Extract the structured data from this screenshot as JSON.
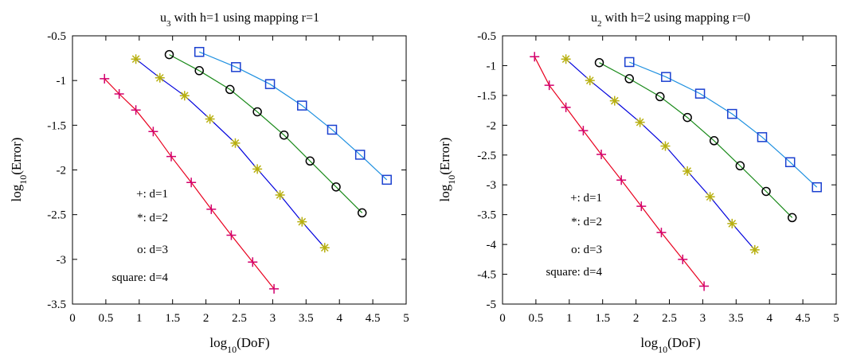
{
  "chart_data": [
    {
      "type": "line",
      "title_main": "u",
      "title_sub": "3",
      "title_rest": " with h=1 using mapping r=1",
      "xlabel_main": "log",
      "xlabel_sub": "10",
      "xlabel_rest": "(DoF)",
      "ylabel_main": "log",
      "ylabel_sub": "10",
      "ylabel_rest": "(Error)",
      "xlim": [
        0,
        5
      ],
      "ylim": [
        -3.5,
        -0.5
      ],
      "xticks": [
        0,
        0.5,
        1,
        1.5,
        2,
        2.5,
        3,
        3.5,
        4,
        4.5,
        5
      ],
      "xtick_labels": [
        "0",
        "0.5",
        "1",
        "1.5",
        "2",
        "2.5",
        "3",
        "3.5",
        "4",
        "4.5",
        "5"
      ],
      "yticks": [
        -3.5,
        -3,
        -2.5,
        -2,
        -1.5,
        -1,
        -0.5
      ],
      "ytick_labels": [
        "-3.5",
        "-3",
        "-2.5",
        "-2",
        "-1.5",
        "-1",
        "-0.5"
      ],
      "legend": [
        "+: d=1",
        "*: d=2",
        "o: d=3",
        "square: d=4"
      ],
      "series": [
        {
          "marker": "plus",
          "color": "#e8001f",
          "marker_color": "#d2006e",
          "x": [
            0.48,
            0.7,
            0.95,
            1.21,
            1.48,
            1.78,
            2.08,
            2.38,
            2.7,
            3.02
          ],
          "y": [
            -0.98,
            -1.15,
            -1.33,
            -1.57,
            -1.85,
            -2.14,
            -2.44,
            -2.73,
            -3.03,
            -3.33
          ]
        },
        {
          "marker": "star",
          "color": "#0000dd",
          "marker_color": "#b8b010",
          "x": [
            0.95,
            1.31,
            1.68,
            2.06,
            2.44,
            2.77,
            3.11,
            3.44,
            3.78
          ],
          "y": [
            -0.76,
            -0.97,
            -1.17,
            -1.43,
            -1.7,
            -1.99,
            -2.28,
            -2.58,
            -2.87
          ]
        },
        {
          "marker": "circle",
          "color": "#1a8a1a",
          "marker_color": "#000000",
          "x": [
            1.45,
            1.9,
            2.36,
            2.77,
            3.17,
            3.56,
            3.95,
            4.34
          ],
          "y": [
            -0.71,
            -0.89,
            -1.1,
            -1.35,
            -1.61,
            -1.9,
            -2.19,
            -2.48
          ]
        },
        {
          "marker": "square",
          "color": "#1e90e0",
          "marker_color": "#1a40d0",
          "x": [
            1.9,
            2.45,
            2.96,
            3.44,
            3.89,
            4.31,
            4.71
          ],
          "y": [
            -0.68,
            -0.85,
            -1.04,
            -1.28,
            -1.55,
            -1.83,
            -2.11
          ]
        }
      ]
    },
    {
      "type": "line",
      "title_main": "u",
      "title_sub": "2",
      "title_rest": " with h=2 using mapping r=0",
      "xlabel_main": "log",
      "xlabel_sub": "10",
      "xlabel_rest": "(DoF)",
      "ylabel_main": "log",
      "ylabel_sub": "10",
      "ylabel_rest": "(Error)",
      "xlim": [
        0,
        5
      ],
      "ylim": [
        -5,
        -0.5
      ],
      "xticks": [
        0,
        0.5,
        1,
        1.5,
        2,
        2.5,
        3,
        3.5,
        4,
        4.5,
        5
      ],
      "xtick_labels": [
        "0",
        "0.5",
        "1",
        "1.5",
        "2",
        "2.5",
        "3",
        "3.5",
        "4",
        "4.5",
        "5"
      ],
      "yticks": [
        -5,
        -4.5,
        -4,
        -3.5,
        -3,
        -2.5,
        -2,
        -1.5,
        -1,
        -0.5
      ],
      "ytick_labels": [
        "-5",
        "-4.5",
        "-4",
        "-3.5",
        "-3",
        "-2.5",
        "-2",
        "-1.5",
        "-1",
        "-0.5"
      ],
      "legend": [
        "+: d=1",
        "*: d=2",
        "o: d=3",
        "square: d=4"
      ],
      "series": [
        {
          "marker": "plus",
          "color": "#e8001f",
          "marker_color": "#d2006e",
          "x": [
            0.48,
            0.7,
            0.95,
            1.21,
            1.48,
            1.78,
            2.08,
            2.38,
            2.7,
            3.02
          ],
          "y": [
            -0.85,
            -1.33,
            -1.7,
            -2.09,
            -2.49,
            -2.92,
            -3.36,
            -3.8,
            -4.25,
            -4.7
          ]
        },
        {
          "marker": "star",
          "color": "#0000dd",
          "marker_color": "#b8b010",
          "x": [
            0.95,
            1.31,
            1.68,
            2.06,
            2.44,
            2.77,
            3.11,
            3.44,
            3.78
          ],
          "y": [
            -0.89,
            -1.25,
            -1.59,
            -1.95,
            -2.35,
            -2.77,
            -3.2,
            -3.65,
            -4.09
          ]
        },
        {
          "marker": "circle",
          "color": "#1a8a1a",
          "marker_color": "#000000",
          "x": [
            1.45,
            1.9,
            2.36,
            2.77,
            3.17,
            3.56,
            3.95,
            4.34
          ],
          "y": [
            -0.95,
            -1.22,
            -1.52,
            -1.87,
            -2.26,
            -2.68,
            -3.11,
            -3.55
          ]
        },
        {
          "marker": "square",
          "color": "#1e90e0",
          "marker_color": "#1a40d0",
          "x": [
            1.9,
            2.45,
            2.96,
            3.44,
            3.89,
            4.31,
            4.71
          ],
          "y": [
            -0.94,
            -1.19,
            -1.47,
            -1.81,
            -2.2,
            -2.62,
            -3.04
          ]
        }
      ]
    }
  ]
}
